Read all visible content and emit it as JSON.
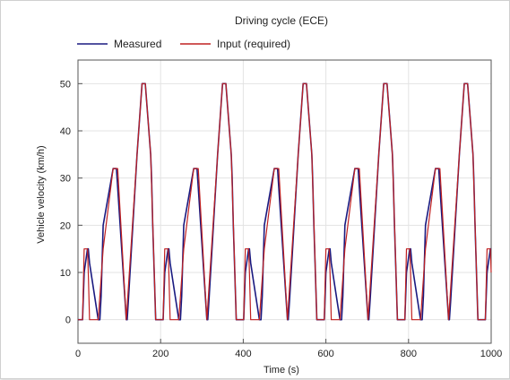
{
  "chart_data": {
    "type": "line",
    "title": "Driving cycle (ECE)",
    "xlabel": "Time (s)",
    "ylabel": "Vehicle velocity (km/h)",
    "xlim": [
      0,
      1000
    ],
    "ylim": [
      -5,
      55
    ],
    "xticks": [
      0,
      200,
      400,
      600,
      800,
      1000
    ],
    "xtick_labels": [
      "0",
      "200",
      "400",
      "600",
      "800",
      "1000"
    ],
    "yticks": [
      0,
      10,
      20,
      30,
      40,
      50
    ],
    "ytick_labels": [
      "0",
      "10",
      "20",
      "30",
      "40",
      "50"
    ],
    "grid": true,
    "legend_position": "top",
    "cycle_period_s": 195,
    "series": [
      {
        "name": "Measured",
        "color": "#1a1a80",
        "x": [
          0,
          11,
          15,
          23,
          25,
          28,
          49,
          53,
          56,
          61,
          85,
          93,
          96,
          117,
          119,
          122,
          143,
          155,
          163,
          176,
          178,
          181,
          188
        ],
        "y": [
          0,
          0,
          10,
          15,
          15,
          12,
          0,
          0,
          5,
          20,
          32,
          32,
          28,
          0,
          0,
          4,
          35,
          50,
          50,
          35,
          30,
          20,
          0
        ]
      },
      {
        "name": "Input (required)",
        "color": "#c02020",
        "x": [
          0,
          11,
          15,
          23,
          25,
          28,
          49,
          61,
          85,
          96,
          117,
          143,
          155,
          163,
          176,
          188,
          195
        ],
        "y": [
          0,
          0,
          15,
          15,
          10,
          0,
          0,
          15,
          32,
          32,
          0,
          35,
          50,
          50,
          35,
          0,
          0
        ]
      }
    ]
  }
}
